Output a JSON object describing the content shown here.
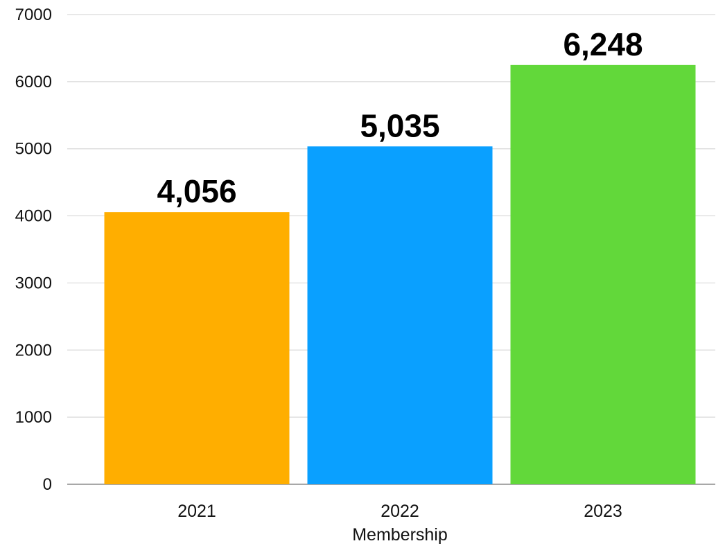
{
  "chart_data": {
    "type": "bar",
    "title": "",
    "xlabel": "Membership",
    "ylabel": "",
    "categories": [
      "2021",
      "2022",
      "2023"
    ],
    "values": [
      4056,
      5035,
      6248
    ],
    "value_labels": [
      "4,056",
      "5,035",
      "6,248"
    ],
    "bar_colors": [
      "#ffae00",
      "#0aa0ff",
      "#62d83a"
    ],
    "ylim": [
      0,
      7000
    ],
    "yticks": [
      0,
      1000,
      2000,
      3000,
      4000,
      5000,
      6000,
      7000
    ],
    "ytick_labels": [
      "0",
      "1000",
      "2000",
      "3000",
      "4000",
      "5000",
      "6000",
      "7000"
    ],
    "grid": true,
    "legend": "none"
  }
}
